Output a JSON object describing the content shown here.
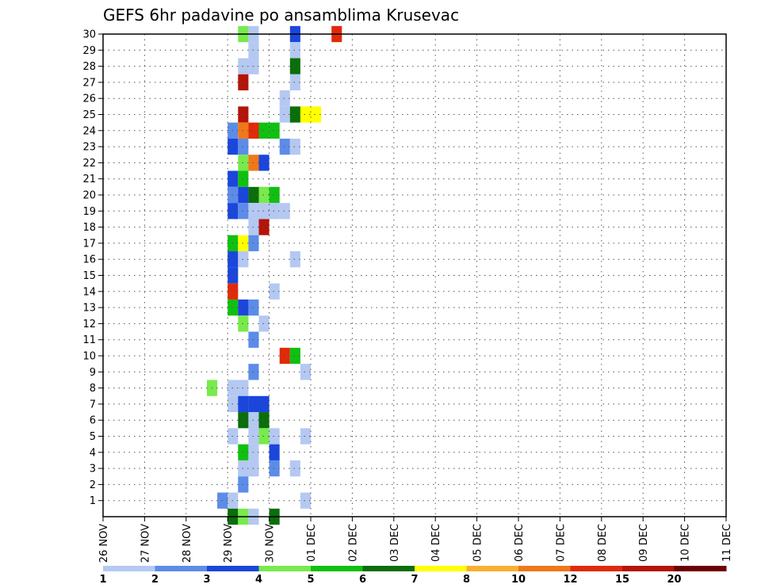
{
  "chart_data": {
    "type": "heatmap",
    "title": "GEFS 6hr padavine po ansamblima Krusevac",
    "x_tick_labels": [
      "26 NOV",
      "27 NOV",
      "28 NOV",
      "29 NOV",
      "30 NOV",
      "01 DEC",
      "02 DEC",
      "03 DEC",
      "04 DEC",
      "05 DEC",
      "06 DEC",
      "07 DEC",
      "08 DEC",
      "09 DEC",
      "10 DEC",
      "11 DEC"
    ],
    "y_range": [
      0,
      30
    ],
    "y_ticks": [
      1,
      2,
      3,
      4,
      5,
      6,
      7,
      8,
      9,
      10,
      11,
      12,
      13,
      14,
      15,
      16,
      17,
      18,
      19,
      20,
      21,
      22,
      23,
      24,
      25,
      26,
      27,
      28,
      29,
      30
    ],
    "steps_per_day": 4,
    "grid": true,
    "colorbar": {
      "labels": [
        "1",
        "2",
        "3",
        "4",
        "5",
        "6",
        "7",
        "8",
        "10",
        "12",
        "15",
        "20"
      ],
      "colors": [
        "#b4c8f2",
        "#5c8ce8",
        "#1a46dc",
        "#78ea4c",
        "#10c010",
        "#0a6e0a",
        "#ffff00",
        "#f8b030",
        "#f07818",
        "#e02a0a",
        "#b4140a",
        "#6e0000"
      ]
    },
    "cells": [
      [
        1,
        30,
        3
      ],
      [
        2,
        30,
        0
      ],
      [
        6,
        30,
        2
      ],
      [
        10,
        30,
        9
      ],
      [
        2,
        29,
        0
      ],
      [
        6,
        29,
        0
      ],
      [
        1,
        28,
        0
      ],
      [
        2,
        28,
        0
      ],
      [
        6,
        28,
        5
      ],
      [
        1,
        27,
        10
      ],
      [
        6,
        27,
        0
      ],
      [
        5,
        26,
        0
      ],
      [
        1,
        25,
        10
      ],
      [
        5,
        25,
        0
      ],
      [
        6,
        25,
        5
      ],
      [
        7,
        25,
        6
      ],
      [
        8,
        25,
        6
      ],
      [
        0,
        24,
        1
      ],
      [
        1,
        24,
        8
      ],
      [
        2,
        24,
        9
      ],
      [
        3,
        24,
        4
      ],
      [
        4,
        24,
        4
      ],
      [
        0,
        23,
        2
      ],
      [
        1,
        23,
        1
      ],
      [
        5,
        23,
        1
      ],
      [
        6,
        23,
        0
      ],
      [
        1,
        22,
        3
      ],
      [
        2,
        22,
        8
      ],
      [
        3,
        22,
        2
      ],
      [
        0,
        21,
        2
      ],
      [
        1,
        21,
        4
      ],
      [
        0,
        20,
        1
      ],
      [
        1,
        20,
        2
      ],
      [
        2,
        20,
        5
      ],
      [
        3,
        20,
        3
      ],
      [
        4,
        20,
        4
      ],
      [
        0,
        19,
        2
      ],
      [
        1,
        19,
        1
      ],
      [
        2,
        19,
        0
      ],
      [
        3,
        19,
        0
      ],
      [
        4,
        19,
        0
      ],
      [
        5,
        19,
        0
      ],
      [
        2,
        18,
        0
      ],
      [
        3,
        18,
        10
      ],
      [
        0,
        17,
        4
      ],
      [
        1,
        17,
        6
      ],
      [
        2,
        17,
        1
      ],
      [
        0,
        16,
        2
      ],
      [
        1,
        16,
        0
      ],
      [
        6,
        16,
        0
      ],
      [
        0,
        15,
        2
      ],
      [
        0,
        14,
        9
      ],
      [
        4,
        14,
        0
      ],
      [
        0,
        13,
        4
      ],
      [
        1,
        13,
        2
      ],
      [
        2,
        13,
        1
      ],
      [
        1,
        12,
        3
      ],
      [
        3,
        12,
        0
      ],
      [
        2,
        11,
        1
      ],
      [
        5,
        10,
        9
      ],
      [
        6,
        10,
        4
      ],
      [
        2,
        9,
        1
      ],
      [
        7,
        9,
        0
      ],
      [
        -2,
        8,
        3
      ],
      [
        0,
        8,
        0
      ],
      [
        1,
        8,
        0
      ],
      [
        0,
        7,
        0
      ],
      [
        1,
        7,
        2
      ],
      [
        2,
        7,
        2
      ],
      [
        3,
        7,
        2
      ],
      [
        1,
        6,
        5
      ],
      [
        2,
        6,
        0
      ],
      [
        3,
        6,
        5
      ],
      [
        0,
        5,
        0
      ],
      [
        2,
        5,
        0
      ],
      [
        3,
        5,
        3
      ],
      [
        4,
        5,
        0
      ],
      [
        7,
        5,
        0
      ],
      [
        1,
        4,
        4
      ],
      [
        2,
        4,
        0
      ],
      [
        4,
        4,
        2
      ],
      [
        1,
        3,
        0
      ],
      [
        2,
        3,
        0
      ],
      [
        4,
        3,
        1
      ],
      [
        6,
        3,
        0
      ],
      [
        1,
        2,
        1
      ],
      [
        -1,
        1,
        1
      ],
      [
        0,
        1,
        0
      ],
      [
        7,
        1,
        0
      ],
      [
        0,
        0,
        5
      ],
      [
        1,
        0,
        3
      ],
      [
        2,
        0,
        0
      ],
      [
        4,
        0,
        5
      ]
    ]
  }
}
